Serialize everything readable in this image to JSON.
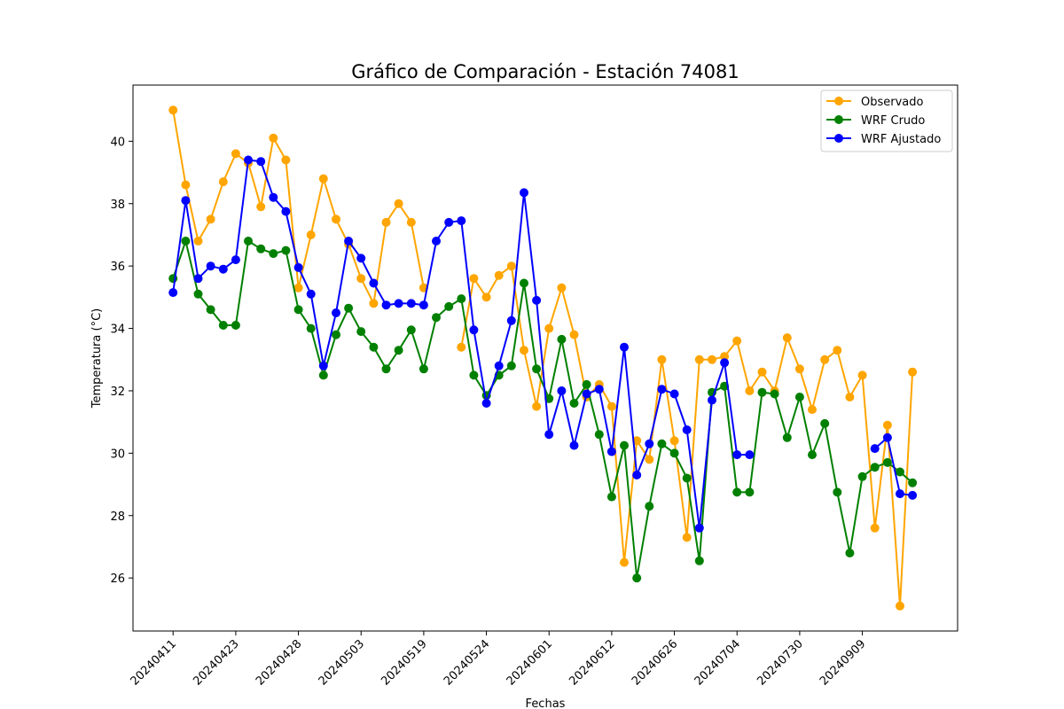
{
  "chart_data": {
    "type": "line",
    "title": "Gráfico de Comparación - Estación 74081",
    "xlabel": "Fechas",
    "ylabel": "Temperatura (°C)",
    "ylim": [
      24.3,
      41.8
    ],
    "yticks": [
      26,
      28,
      30,
      32,
      34,
      36,
      38,
      40
    ],
    "x_tick_labels": [
      "20240411",
      "20240423",
      "20240428",
      "20240503",
      "20240519",
      "20240524",
      "20240601",
      "20240612",
      "20240626",
      "20240704",
      "20240730",
      "20240909"
    ],
    "x_tick_indices": [
      0,
      5,
      10,
      15,
      20,
      25,
      30,
      35,
      40,
      45,
      50,
      55
    ],
    "xlim": [
      -3.2,
      62.6
    ],
    "legend_position": "upper right",
    "grid": false,
    "series": [
      {
        "name": "Observado",
        "color": "#ffa500",
        "values": [
          41.0,
          38.6,
          36.8,
          37.5,
          38.7,
          39.6,
          39.3,
          37.9,
          40.1,
          39.4,
          35.3,
          37.0,
          38.8,
          37.5,
          36.7,
          35.6,
          34.8,
          37.4,
          38.0,
          37.4,
          35.3,
          null,
          null,
          33.4,
          35.6,
          35.0,
          35.7,
          36.0,
          33.3,
          31.5,
          34.0,
          35.3,
          33.8,
          31.8,
          32.2,
          31.5,
          26.5,
          30.4,
          29.8,
          33.0,
          30.4,
          27.3,
          33.0,
          33.0,
          33.1,
          33.6,
          32.0,
          32.6,
          32.0,
          33.7,
          32.7,
          31.4,
          33.0,
          33.3,
          31.8,
          32.5,
          27.6,
          30.9,
          25.1,
          32.6
        ]
      },
      {
        "name": "WRF Crudo",
        "color": "#008000",
        "values": [
          35.6,
          36.8,
          35.1,
          34.6,
          34.1,
          34.1,
          36.8,
          36.55,
          36.4,
          36.5,
          34.6,
          34.0,
          32.5,
          33.8,
          34.65,
          33.9,
          33.4,
          32.7,
          33.3,
          33.95,
          32.7,
          34.35,
          34.7,
          34.95,
          32.5,
          31.85,
          32.5,
          32.8,
          35.45,
          32.7,
          31.75,
          33.65,
          31.6,
          32.2,
          30.6,
          28.6,
          30.25,
          26.0,
          28.3,
          30.3,
          30.0,
          29.2,
          26.55,
          31.95,
          32.15,
          28.75,
          28.75,
          31.95,
          31.9,
          30.5,
          31.8,
          29.95,
          30.95,
          28.75,
          26.8,
          29.25,
          29.55,
          29.7,
          29.4,
          29.05
        ]
      },
      {
        "name": "WRF Ajustado",
        "color": "#0000ff",
        "values": [
          35.15,
          38.1,
          35.6,
          36.0,
          35.9,
          36.2,
          39.4,
          39.35,
          38.2,
          37.75,
          35.95,
          35.1,
          32.8,
          34.5,
          36.8,
          36.25,
          35.45,
          34.75,
          34.8,
          34.8,
          34.75,
          36.8,
          37.4,
          37.45,
          33.95,
          31.6,
          32.8,
          34.25,
          38.35,
          34.9,
          30.6,
          32.0,
          30.25,
          31.9,
          32.05,
          30.05,
          33.4,
          29.3,
          30.3,
          32.05,
          31.9,
          30.75,
          27.6,
          31.7,
          32.9,
          29.95,
          29.95,
          null,
          null,
          null,
          null,
          null,
          null,
          null,
          null,
          null,
          30.15,
          30.5,
          28.7,
          28.65
        ]
      }
    ]
  }
}
